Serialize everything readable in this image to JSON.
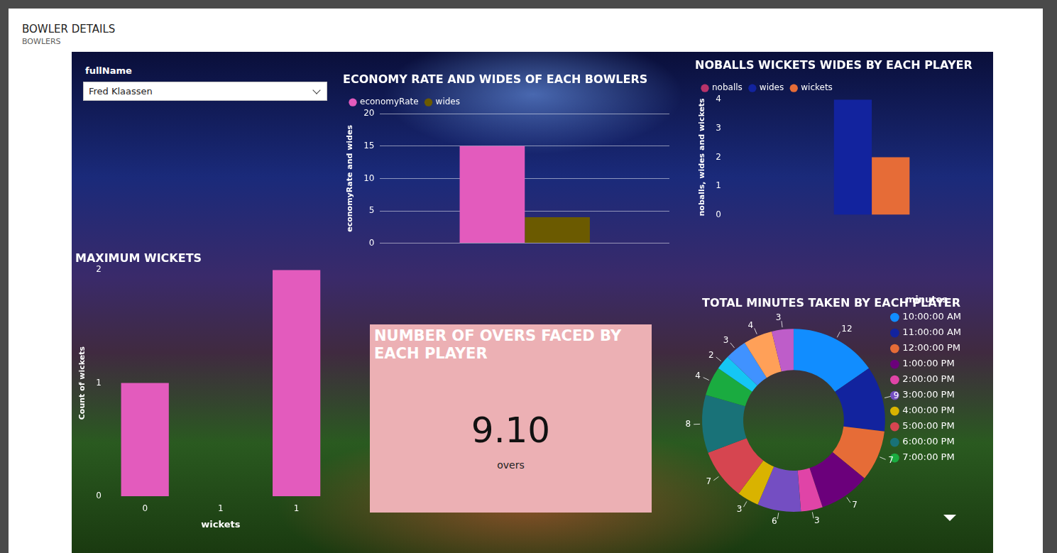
{
  "header": {
    "title": "BOWLER DETAILS",
    "subtitle": "BOWLERS"
  },
  "slicer": {
    "label": "fullName",
    "value": "Fred Klaassen"
  },
  "card": {
    "title": "NUMBER OF OVERS FACED BY EACH PLAYER",
    "value": "9.10",
    "unit": "overs"
  },
  "chart_data": [
    {
      "type": "bar",
      "title": "ECONOMY RATE AND WIDES OF EACH BOWLERS",
      "y_label": "economyRate and wides",
      "categories": [
        null
      ],
      "series": [
        {
          "name": "economyRate",
          "color": "#e35bbd",
          "values": [
            15
          ]
        },
        {
          "name": "wides",
          "color": "#6b5a00",
          "values": [
            4
          ]
        }
      ],
      "ylim": [
        0,
        20
      ],
      "yticks": [
        0,
        5,
        10,
        15,
        20
      ],
      "grid": true,
      "legend": "top-left"
    },
    {
      "type": "bar",
      "title": "NOBALLS WICKETS WIDES BY EACH PLAYER",
      "y_label": "noballs, wides and wickets",
      "categories": [
        null
      ],
      "series": [
        {
          "name": "noballs",
          "color": "#b8336a",
          "values": [
            0
          ]
        },
        {
          "name": "wides",
          "color": "#12239e",
          "values": [
            4
          ]
        },
        {
          "name": "wickets",
          "color": "#e66c37",
          "values": [
            2
          ]
        }
      ],
      "ylim": [
        0,
        4
      ],
      "yticks": [
        0,
        1,
        2,
        3,
        4
      ],
      "grid": false,
      "legend": "top-left"
    },
    {
      "type": "bar",
      "title": "MAXIMUM WICKETS",
      "x_label": "wickets",
      "y_label": "Count of wickets",
      "categories": [
        "0",
        "1",
        "1"
      ],
      "values": [
        1,
        null,
        2
      ],
      "color": "#e35bbd",
      "ylim": [
        0,
        2
      ],
      "yticks": [
        0,
        1,
        2
      ],
      "grid": false
    },
    {
      "type": "doughnut",
      "title": "TOTAL MINUTES TAKEN BY EACH PLAYER",
      "legend_title": "minutes",
      "categories": [
        "10:00:00 AM",
        "11:00:00 AM",
        "12:00:00 PM",
        "1:00:00 PM",
        "2:00:00 PM",
        "3:00:00 PM",
        "4:00:00 PM",
        "5:00:00 PM",
        "6:00:00 PM",
        "7:00:00 PM",
        null,
        null,
        null,
        null
      ],
      "values": [
        12,
        9,
        7,
        7,
        3,
        6,
        3,
        7,
        8,
        4,
        2,
        3,
        4,
        3
      ],
      "colors": [
        "#118dff",
        "#12239e",
        "#e66c37",
        "#6b007b",
        "#e044a7",
        "#744ec2",
        "#d9b300",
        "#d64550",
        "#197278",
        "#1aab40",
        "#15c6f4",
        "#4092ff",
        "#ffa058",
        "#be5dc9"
      ],
      "data_labels": true,
      "legend": "right"
    }
  ]
}
